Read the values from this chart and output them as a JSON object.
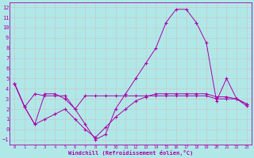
{
  "xlabel": "Windchill (Refroidissement éolien,°C)",
  "background_color": "#b0e8e8",
  "line_color": "#aa00aa",
  "grid_color": "#c8c8c8",
  "xlim": [
    -0.5,
    23.5
  ],
  "ylim": [
    -1.5,
    12.5
  ],
  "xticks": [
    0,
    1,
    2,
    3,
    4,
    5,
    6,
    7,
    8,
    9,
    10,
    11,
    12,
    13,
    14,
    15,
    16,
    17,
    18,
    19,
    20,
    21,
    22,
    23
  ],
  "yticks": [
    -1,
    0,
    1,
    2,
    3,
    4,
    5,
    6,
    7,
    8,
    9,
    10,
    11,
    12
  ],
  "line1_x": [
    0,
    1,
    2,
    3,
    4,
    5,
    6,
    7,
    8,
    9,
    10,
    11,
    12,
    13,
    14,
    15,
    16,
    17,
    18,
    19,
    20,
    21,
    22,
    23
  ],
  "line1_y": [
    4.5,
    2.2,
    3.5,
    3.3,
    3.3,
    3.3,
    2.0,
    3.3,
    3.3,
    3.3,
    3.3,
    3.3,
    3.3,
    3.3,
    3.3,
    3.3,
    3.3,
    3.3,
    3.3,
    3.3,
    3.0,
    3.0,
    3.0,
    2.5
  ],
  "line2_x": [
    0,
    1,
    2,
    3,
    4,
    5,
    6,
    7,
    8,
    9,
    10,
    11,
    12,
    13,
    14,
    15,
    16,
    17,
    18,
    19,
    20,
    21,
    22,
    23
  ],
  "line2_y": [
    4.5,
    2.2,
    0.5,
    3.5,
    3.5,
    3.0,
    2.0,
    0.5,
    -1.0,
    -0.5,
    2.0,
    3.5,
    5.0,
    6.5,
    8.0,
    10.5,
    11.8,
    11.8,
    10.5,
    8.5,
    2.8,
    5.0,
    3.0,
    2.3
  ],
  "line3_x": [
    0,
    1,
    2,
    3,
    4,
    5,
    6,
    7,
    8,
    9,
    10,
    11,
    12,
    13,
    14,
    15,
    16,
    17,
    18,
    19,
    20,
    21,
    22,
    23
  ],
  "line3_y": [
    4.5,
    2.2,
    0.5,
    1.0,
    1.5,
    2.0,
    1.0,
    0.0,
    -0.8,
    0.2,
    1.2,
    2.0,
    2.8,
    3.2,
    3.5,
    3.5,
    3.5,
    3.5,
    3.5,
    3.5,
    3.2,
    3.2,
    3.0,
    2.5
  ]
}
